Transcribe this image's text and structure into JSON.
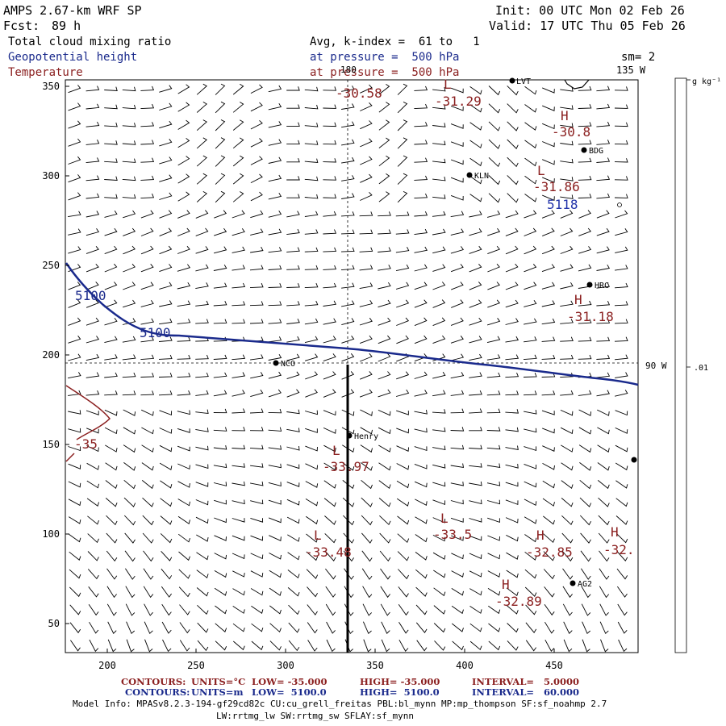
{
  "header": {
    "model": "AMPS 2.67-km WRF SP",
    "forecast_label": "Fcst:",
    "forecast_hours": "89 h",
    "init": "Init: 00 UTC Mon 02 Feb 26",
    "valid": "Valid: 17 UTC Thu 05 Feb 26",
    "field1": "Total cloud mixing ratio",
    "field1_detail": "Avg, k-index =  61 to   1",
    "field2": "Geopotential height",
    "field2_detail": "at pressure =  500 hPa",
    "field3": "Temperature",
    "field3_detail": "at pressure =  500 hPa",
    "smooth": "sm= 2",
    "lon_135": "135 W",
    "lon_180": "180",
    "lon_90": "90 W"
  },
  "colorbar": {
    "units": "g kg⁻¹",
    "value": ".01"
  },
  "axes": {
    "x_ticks": [
      "200",
      "250",
      "300",
      "350",
      "400",
      "450"
    ],
    "y_ticks": [
      "350",
      "300",
      "250",
      "200",
      "150",
      "100",
      "50"
    ]
  },
  "stations": [
    {
      "name": "LVT"
    },
    {
      "name": "BDG"
    },
    {
      "name": "KLN"
    },
    {
      "name": "HRC"
    },
    {
      "name": "NCO"
    },
    {
      "name": "Henry"
    },
    {
      "name": "AG2"
    }
  ],
  "temp_labels": [
    {
      "letter": "",
      "value": "-30.58"
    },
    {
      "letter": "L",
      "value": "-31.29"
    },
    {
      "letter": "H",
      "value": "-30.8"
    },
    {
      "letter": "L",
      "value": "-31.86"
    },
    {
      "letter": "H",
      "value": "-31.18"
    },
    {
      "letter": "L",
      "value": "-33.97"
    },
    {
      "letter": "L",
      "value": "-33.5"
    },
    {
      "letter": "L",
      "value": "-33.48"
    },
    {
      "letter": "H",
      "value": "-32.85"
    },
    {
      "letter": "H",
      "value": "-32."
    },
    {
      "letter": "H",
      "value": "-32.89"
    }
  ],
  "contour_labels": {
    "height_1": "5100",
    "height_2": "5100",
    "height_low": "5118",
    "temp": "-35"
  },
  "footer": {
    "line1_contours": "CONTOURS:",
    "line1_units": "UNITS=°C",
    "line1_low": "LOW= -35.000",
    "line1_high": "HIGH= -35.000",
    "line1_interval": "INTERVAL=   5.0000",
    "line2_contours": "CONTOURS:",
    "line2_units": "UNITS=m",
    "line2_low": "LOW=  5100.0",
    "line2_high": "HIGH=  5100.0",
    "line2_interval": "INTERVAL=   60.000",
    "model_info": "Model Info: MPASv8.2.3-194-gf29cd82c CU:cu_grell_freitas PBL:bl_mynn MP:mp_thompson SF:sf_noahmp 2.7",
    "model_info_2": "LW:rrtmg_lw SW:rrtmg_sw SFLAY:sf_mynn"
  },
  "colors": {
    "height_contour": "#1a2a8c",
    "temp_contour": "#8b2020",
    "low_height_label": "#2233aa"
  }
}
